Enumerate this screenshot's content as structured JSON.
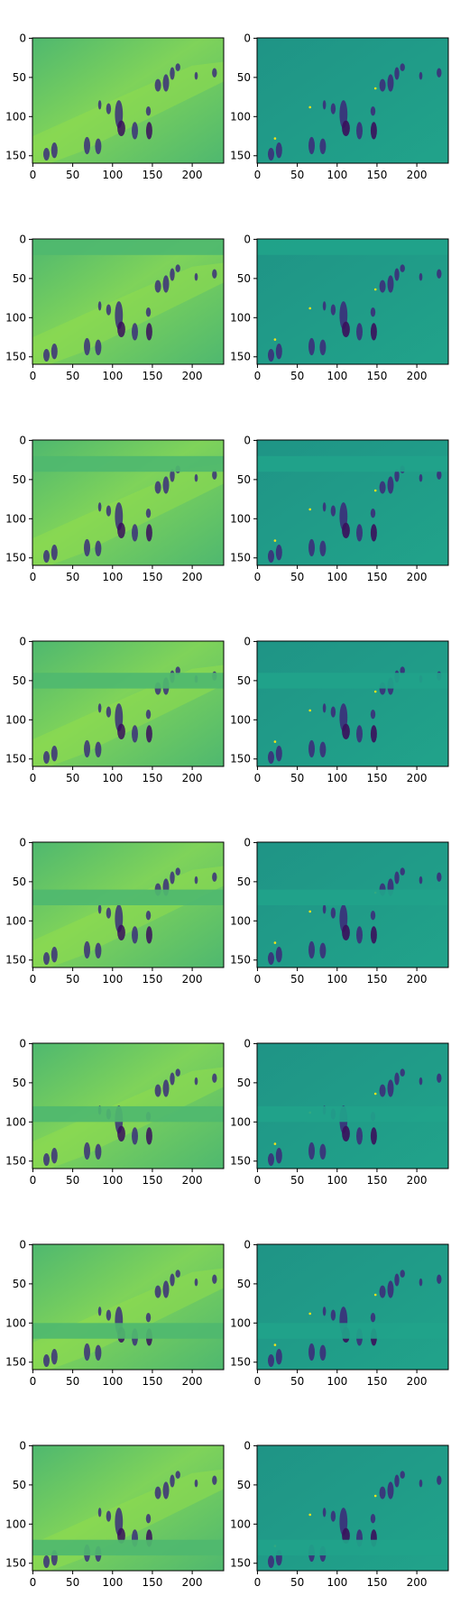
{
  "chart_data": {
    "type": "heatmap",
    "layout": {
      "rows": 8,
      "cols": 2
    },
    "x_ticks": [
      0,
      50,
      100,
      150,
      200
    ],
    "y_ticks": [
      0,
      50,
      100,
      150
    ],
    "xlim": [
      -0.5,
      239.5
    ],
    "ylim": [
      159.5,
      -0.5
    ],
    "colormap": "viridis",
    "panels": [
      {
        "row": 0,
        "col": 0,
        "kind": "reconstruction",
        "mask_y": null
      },
      {
        "row": 0,
        "col": 1,
        "kind": "residual",
        "mask_y": null
      },
      {
        "row": 1,
        "col": 0,
        "kind": "reconstruction",
        "mask_y": [
          0,
          20
        ]
      },
      {
        "row": 1,
        "col": 1,
        "kind": "residual",
        "mask_y": [
          0,
          20
        ]
      },
      {
        "row": 2,
        "col": 0,
        "kind": "reconstruction",
        "mask_y": [
          20,
          40
        ]
      },
      {
        "row": 2,
        "col": 1,
        "kind": "residual",
        "mask_y": [
          20,
          40
        ]
      },
      {
        "row": 3,
        "col": 0,
        "kind": "reconstruction",
        "mask_y": [
          40,
          60
        ]
      },
      {
        "row": 3,
        "col": 1,
        "kind": "residual",
        "mask_y": [
          40,
          60
        ]
      },
      {
        "row": 4,
        "col": 0,
        "kind": "reconstruction",
        "mask_y": [
          60,
          80
        ]
      },
      {
        "row": 4,
        "col": 1,
        "kind": "residual",
        "mask_y": [
          60,
          80
        ]
      },
      {
        "row": 5,
        "col": 0,
        "kind": "reconstruction",
        "mask_y": [
          80,
          100
        ]
      },
      {
        "row": 5,
        "col": 1,
        "kind": "residual",
        "mask_y": [
          80,
          100
        ]
      },
      {
        "row": 6,
        "col": 0,
        "kind": "reconstruction",
        "mask_y": [
          100,
          120
        ]
      },
      {
        "row": 6,
        "col": 1,
        "kind": "residual",
        "mask_y": [
          100,
          120
        ]
      },
      {
        "row": 7,
        "col": 0,
        "kind": "reconstruction",
        "mask_y": [
          120,
          140
        ]
      },
      {
        "row": 7,
        "col": 1,
        "kind": "residual",
        "mask_y": [
          120,
          140
        ]
      }
    ]
  },
  "colors": {
    "recon_bg_light": "#7fd35a",
    "recon_bg_mid": "#4fb86f",
    "recon_bg_dark": "#3aa47a",
    "resid_bg": "#21a38a",
    "resid_bg_dark": "#1f9486",
    "figure_dark": "#3b2f7a",
    "figure_darkest": "#3a0f5c",
    "speck": "#f2e51a"
  }
}
